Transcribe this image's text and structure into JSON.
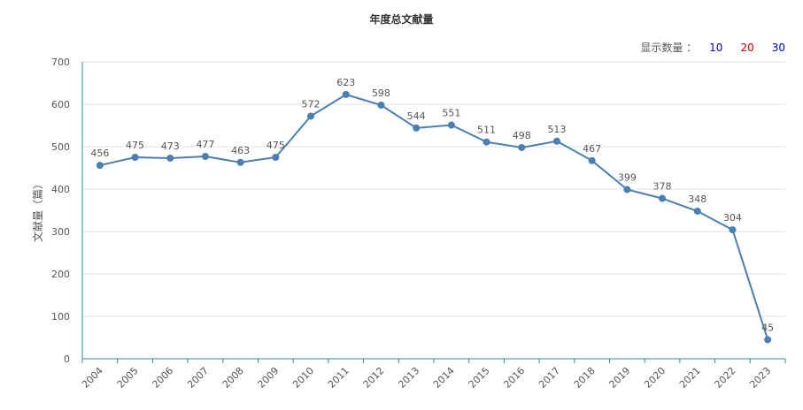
{
  "selector": {
    "label": "显示数量 ：",
    "options": [
      {
        "label": "10",
        "color": "#0000cc"
      },
      {
        "label": "20",
        "color": "#cc0000"
      },
      {
        "label": "30",
        "color": "#0000cc"
      }
    ]
  },
  "colors": {
    "line": "#4a7fb0",
    "axis": "#2e8b9a",
    "grid": "#e0e0e0"
  },
  "chart_data": {
    "type": "line",
    "title": "年度总文献量",
    "xlabel": "",
    "ylabel": "文献量（篇）",
    "ylim": [
      0,
      700
    ],
    "yticks": [
      0,
      100,
      200,
      300,
      400,
      500,
      600,
      700
    ],
    "grid": true,
    "categories": [
      "2004",
      "2005",
      "2006",
      "2007",
      "2008",
      "2009",
      "2010",
      "2011",
      "2012",
      "2013",
      "2014",
      "2015",
      "2016",
      "2017",
      "2018",
      "2019",
      "2020",
      "2021",
      "2022",
      "2023"
    ],
    "series": [
      {
        "values": [
          456,
          475,
          473,
          477,
          463,
          475,
          572,
          623,
          598,
          544,
          551,
          511,
          498,
          513,
          467,
          399,
          378,
          348,
          304,
          45
        ]
      }
    ]
  }
}
